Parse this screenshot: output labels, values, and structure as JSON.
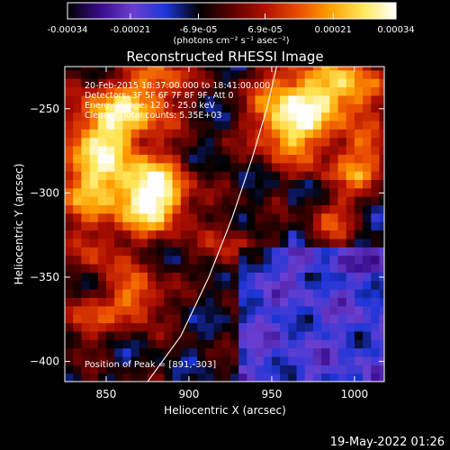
{
  "colorbar": {
    "tick_labels": [
      "-0.00034",
      "-0.00021",
      "-6.9e-05",
      "6.9e-05",
      "0.00021",
      "0.00034"
    ],
    "tick_values": [
      -0.00034,
      -0.00021,
      -6.9e-05,
      6.9e-05,
      0.00021,
      0.00034
    ],
    "range": [
      -0.00034,
      0.00034
    ],
    "units": "(photons cm⁻² s⁻¹ asec⁻²)",
    "colormap": [
      "#000000",
      "#3a0b8a",
      "#6b3fd0",
      "#1c35d8",
      "#000000",
      "#5a0000",
      "#b01000",
      "#e84a00",
      "#ffa000",
      "#ffe85a",
      "#ffffff"
    ]
  },
  "chart_data": {
    "type": "heatmap",
    "title": "Reconstructed RHESSI Image",
    "xlabel": "Heliocentric X (arcsec)",
    "ylabel": "Heliocentric Y (arcsec)",
    "xlim": [
      825,
      1018
    ],
    "ylim": [
      -412,
      -225
    ],
    "x_ticks": [
      850,
      900,
      950,
      1000
    ],
    "x_tick_labels": [
      "850",
      "900",
      "950",
      "1000"
    ],
    "y_ticks": [
      -250,
      -300,
      -350,
      -400
    ],
    "y_tick_labels": [
      "−250",
      "−300",
      "−350",
      "−400"
    ],
    "info_lines": [
      "20-Feb-2015 18:37:00.000 to 18:41:00.000",
      "Detectors: 3F 5F 6F 7F 8F 9F, Att 0",
      "Energy Range: 12.0 - 25.0 keV",
      "Clean     Total counts: 5.35E+03"
    ],
    "peak_label": "Position of Peak = [891,-303]",
    "peak_position": [
      891,
      -303
    ],
    "limb_curve": [
      [
        875,
        -412
      ],
      [
        895,
        -385
      ],
      [
        912,
        -350
      ],
      [
        926,
        -315
      ],
      [
        938,
        -280
      ],
      [
        947,
        -250
      ],
      [
        953,
        -225
      ]
    ]
  },
  "footer": {
    "date": "19-May-2022 01:26"
  }
}
